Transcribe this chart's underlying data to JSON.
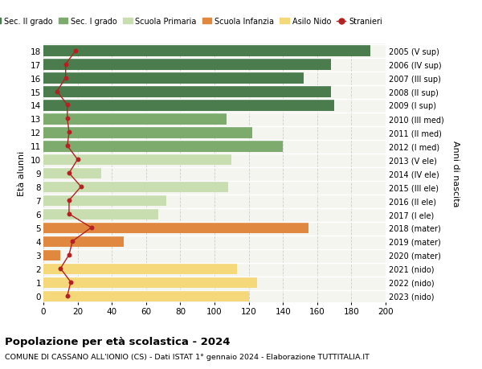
{
  "ages": [
    18,
    17,
    16,
    15,
    14,
    13,
    12,
    11,
    10,
    9,
    8,
    7,
    6,
    5,
    4,
    3,
    2,
    1,
    0
  ],
  "right_labels": [
    "2005 (V sup)",
    "2006 (IV sup)",
    "2007 (III sup)",
    "2008 (II sup)",
    "2009 (I sup)",
    "2010 (III med)",
    "2011 (II med)",
    "2012 (I med)",
    "2013 (V ele)",
    "2014 (IV ele)",
    "2015 (III ele)",
    "2016 (II ele)",
    "2017 (I ele)",
    "2018 (mater)",
    "2019 (mater)",
    "2020 (mater)",
    "2021 (nido)",
    "2022 (nido)",
    "2023 (nido)"
  ],
  "bar_values": [
    191,
    168,
    152,
    168,
    170,
    107,
    122,
    140,
    110,
    34,
    108,
    72,
    67,
    155,
    47,
    10,
    113,
    125,
    120
  ],
  "bar_colors": [
    "#4a7c4e",
    "#4a7c4e",
    "#4a7c4e",
    "#4a7c4e",
    "#4a7c4e",
    "#7dab6e",
    "#7dab6e",
    "#7dab6e",
    "#c8ddb0",
    "#c8ddb0",
    "#c8ddb0",
    "#c8ddb0",
    "#c8ddb0",
    "#e08840",
    "#e08840",
    "#e08840",
    "#f5d87a",
    "#f5d87a",
    "#f5d87a"
  ],
  "stranieri_values": [
    19,
    13,
    13,
    8,
    14,
    14,
    15,
    14,
    20,
    15,
    22,
    15,
    15,
    28,
    17,
    15,
    10,
    16,
    14
  ],
  "legend_items": [
    {
      "label": "Sec. II grado",
      "color": "#4a7c4e"
    },
    {
      "label": "Sec. I grado",
      "color": "#7dab6e"
    },
    {
      "label": "Scuola Primaria",
      "color": "#c8ddb0"
    },
    {
      "label": "Scuola Infanzia",
      "color": "#e08840"
    },
    {
      "label": "Asilo Nido",
      "color": "#f5d87a"
    },
    {
      "label": "Stranieri",
      "color": "#b22222"
    }
  ],
  "ylabel_left": "Età alunni",
  "ylabel_right": "Anni di nascita",
  "xlim": [
    0,
    200
  ],
  "xticks": [
    0,
    20,
    40,
    60,
    80,
    100,
    120,
    140,
    160,
    180,
    200
  ],
  "title_bold": "Popolazione per età scolastica - 2024",
  "subtitle": "COMUNE DI CASSANO ALL'IONIO (CS) - Dati ISTAT 1° gennaio 2024 - Elaborazione TUTTITALIA.IT",
  "bg_color": "#ffffff",
  "bar_bg_color": "#f5f5f0",
  "grid_color": "#cccccc",
  "sep_color": "#ffffff"
}
